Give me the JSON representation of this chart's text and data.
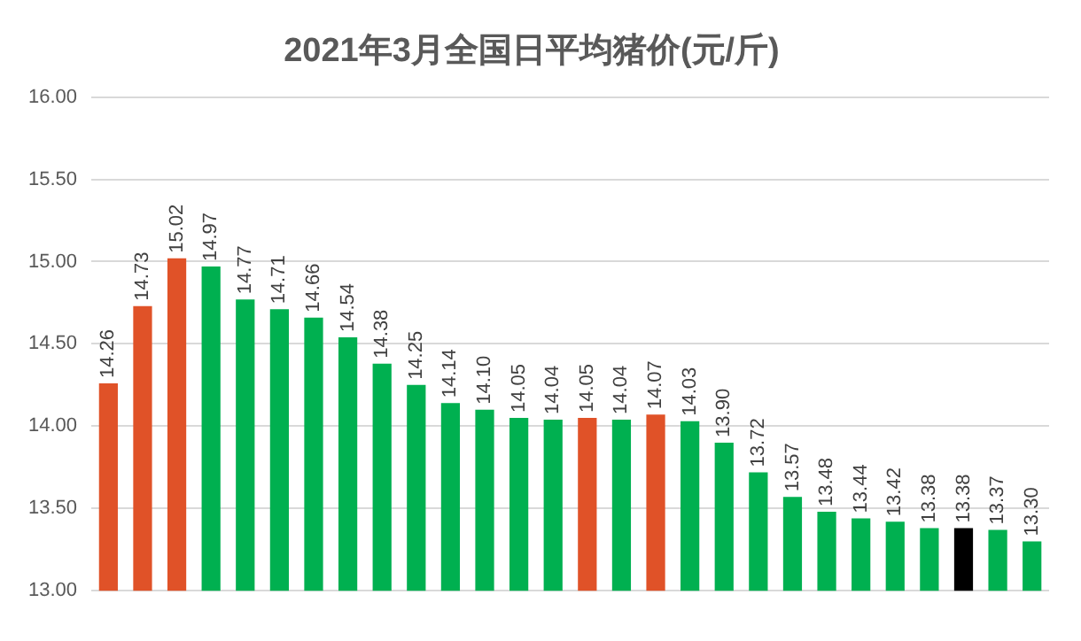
{
  "chart_data": {
    "type": "bar",
    "title": "2021年3月全国日平均猪价(元/斤)",
    "categories": [
      null,
      null,
      null,
      null,
      null,
      null,
      null,
      null,
      null,
      null,
      null,
      null,
      null,
      null,
      null,
      null,
      null,
      null,
      null,
      null,
      null,
      null,
      null,
      null,
      null,
      null,
      null,
      null
    ],
    "values": [
      14.26,
      14.73,
      15.02,
      14.97,
      14.77,
      14.71,
      14.66,
      14.54,
      14.38,
      14.25,
      14.14,
      14.1,
      14.05,
      14.04,
      14.05,
      14.04,
      14.07,
      14.03,
      13.9,
      13.72,
      13.57,
      13.48,
      13.44,
      13.42,
      13.38,
      13.38,
      13.37,
      13.3
    ],
    "value_labels": [
      "14.26",
      "14.73",
      "15.02",
      "14.97",
      "14.77",
      "14.71",
      "14.66",
      "14.54",
      "14.38",
      "14.25",
      "14.14",
      "14.10",
      "14.05",
      "14.04",
      "14.05",
      "14.04",
      "14.07",
      "14.03",
      "13.90",
      "13.72",
      "13.57",
      "13.48",
      "13.44",
      "13.42",
      "13.38",
      "13.38",
      "13.37",
      "13.30"
    ],
    "colors": [
      "#e05228",
      "#e05228",
      "#e05228",
      "#00b050",
      "#00b050",
      "#00b050",
      "#00b050",
      "#00b050",
      "#00b050",
      "#00b050",
      "#00b050",
      "#00b050",
      "#00b050",
      "#00b050",
      "#e05228",
      "#00b050",
      "#e05228",
      "#00b050",
      "#00b050",
      "#00b050",
      "#00b050",
      "#00b050",
      "#00b050",
      "#00b050",
      "#00b050",
      "#000000",
      "#00b050",
      "#00b050"
    ],
    "ylim": [
      13,
      16
    ],
    "yticks": [
      {
        "value": 13,
        "label": "13.00"
      },
      {
        "value": 13.5,
        "label": "13.50"
      },
      {
        "value": 14,
        "label": "14.00"
      },
      {
        "value": 14.5,
        "label": "14.50"
      },
      {
        "value": 15,
        "label": "15.00"
      },
      {
        "value": 15.5,
        "label": "15.50"
      },
      {
        "value": 16,
        "label": "16.00"
      }
    ],
    "grid": "y",
    "legend": false
  }
}
